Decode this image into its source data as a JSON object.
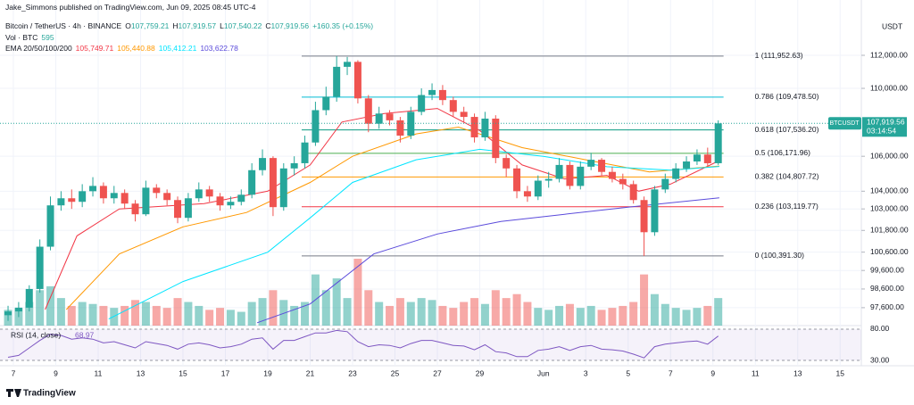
{
  "header": {
    "publisher": "Jake_Simmons published on TradingView.com, Jun 09, 2025 08:45 UTC-4",
    "symbol": "Bitcoin / TetherUS · 4h · BINANCE",
    "ohlc": [
      {
        "key": "O",
        "value": "107,759.21"
      },
      {
        "key": "H",
        "value": "107,919.57"
      },
      {
        "key": "L",
        "value": "107,540.22"
      },
      {
        "key": "C",
        "value": "107,919.56"
      }
    ],
    "change": "+160.35 (+0.15%)",
    "vol_label": "Vol · BTC",
    "vol_value": "595",
    "ema_label": "EMA 20/50/100/200",
    "ema_values": [
      "105,749.71",
      "105,440.88",
      "105,412.21",
      "103,622.78"
    ]
  },
  "chart_data": {
    "type": "candlestick",
    "currency": "USDT",
    "log_scale": true,
    "grid": true,
    "up_color": "#26a69a",
    "down_color": "#ef5350",
    "x": [
      -0.25,
      0.25,
      0.75,
      1.25,
      1.75,
      2.25,
      2.75,
      3.25,
      3.75,
      4.25,
      4.75,
      5.25,
      5.75,
      6.25,
      6.75,
      7.25,
      7.75,
      8.25,
      8.75,
      9.25,
      9.75,
      10.25,
      10.75,
      11.25,
      11.75,
      12.25,
      12.75,
      13.25,
      13.75,
      14.25,
      14.75,
      15.25,
      15.75,
      16.25,
      16.75,
      17.25,
      17.75,
      18.25,
      18.75,
      19.25,
      19.75,
      20.25,
      20.75,
      21.25,
      21.75,
      22.25,
      22.75,
      23.25,
      23.75,
      24.25,
      24.75,
      25.25,
      25.75,
      26.25,
      26.75,
      27.25,
      27.75,
      28.25,
      28.75,
      29.25,
      29.75,
      30.25,
      30.75,
      31.25,
      31.75,
      32.25,
      32.75,
      33.25
    ],
    "open": [
      97200,
      97400,
      97600,
      98600,
      100900,
      103200,
      103600,
      103400,
      104000,
      104300,
      103600,
      103900,
      103300,
      102700,
      104200,
      103900,
      103500,
      102500,
      103600,
      104100,
      103700,
      103200,
      103400,
      103800,
      105200,
      105900,
      103100,
      105300,
      105600,
      106800,
      108700,
      109500,
      111300,
      111600,
      109400,
      107900,
      108500,
      108100,
      107200,
      108600,
      109600,
      109900,
      109300,
      108600,
      108300,
      107100,
      108200,
      105900,
      105300,
      104000,
      103700,
      104600,
      104700,
      105500,
      104300,
      105400,
      105800,
      105100,
      104700,
      104400,
      103500,
      101700,
      104100,
      104700,
      105300,
      105700,
      106100,
      105600
    ],
    "high": [
      97700,
      97900,
      98800,
      101300,
      103700,
      104000,
      104100,
      104400,
      104800,
      104500,
      104300,
      104100,
      103500,
      104600,
      104400,
      104100,
      103700,
      103900,
      104500,
      104300,
      103900,
      103700,
      104100,
      105600,
      106400,
      106000,
      105600,
      106000,
      107200,
      109200,
      110100,
      111952.63,
      111900,
      111700,
      109600,
      108900,
      108700,
      108300,
      108900,
      110000,
      110300,
      110200,
      109500,
      108900,
      108500,
      108600,
      108400,
      106100,
      105500,
      104300,
      104900,
      105100,
      105900,
      105700,
      105700,
      106200,
      105900,
      105400,
      105000,
      104600,
      103700,
      104300,
      105000,
      105600,
      106000,
      106400,
      106500,
      108100
    ],
    "low": [
      96900,
      97100,
      97400,
      98400,
      100700,
      102900,
      103000,
      103100,
      103700,
      103300,
      103300,
      103000,
      102300,
      102600,
      103600,
      103200,
      102200,
      102300,
      103400,
      103400,
      102900,
      103000,
      103200,
      103600,
      104900,
      102600,
      102900,
      104900,
      105300,
      106600,
      108400,
      109200,
      110800,
      109100,
      107400,
      107600,
      107800,
      106800,
      107000,
      108400,
      109300,
      109000,
      108300,
      108000,
      106800,
      106900,
      105600,
      104800,
      103600,
      103400,
      103500,
      104200,
      104500,
      104100,
      104100,
      105200,
      104900,
      104500,
      104100,
      103300,
      100391.3,
      101500,
      103900,
      104500,
      105100,
      105500,
      105400,
      105500
    ],
    "close": [
      97400,
      97600,
      98600,
      100900,
      103200,
      103600,
      103400,
      104000,
      104300,
      103600,
      103900,
      103300,
      102700,
      104200,
      103900,
      103500,
      102500,
      103600,
      104100,
      103700,
      103200,
      103400,
      103800,
      105200,
      105900,
      103100,
      105300,
      105600,
      106800,
      108700,
      109500,
      111300,
      111600,
      109400,
      107900,
      108500,
      108100,
      107200,
      108600,
      109600,
      109900,
      109300,
      108600,
      108300,
      107100,
      108200,
      105900,
      105300,
      104000,
      103700,
      104600,
      104700,
      105500,
      104300,
      105400,
      105800,
      105100,
      104700,
      104400,
      103500,
      101700,
      104100,
      104700,
      105300,
      105700,
      106100,
      105600,
      107919.56
    ],
    "volume": [
      400,
      450,
      600,
      900,
      1000,
      700,
      500,
      600,
      550,
      500,
      450,
      500,
      650,
      600,
      500,
      450,
      700,
      600,
      500,
      400,
      450,
      400,
      350,
      600,
      700,
      900,
      650,
      500,
      600,
      1300,
      900,
      1200,
      700,
      1700,
      900,
      600,
      500,
      700,
      600,
      700,
      650,
      500,
      450,
      600,
      700,
      550,
      900,
      700,
      800,
      600,
      450,
      400,
      500,
      550,
      450,
      500,
      400,
      450,
      500,
      600,
      1300,
      800,
      550,
      450,
      400,
      450,
      500,
      700
    ],
    "xlim": [
      -0.63,
      40
    ],
    "xticks": [
      {
        "value": 0,
        "label": "7"
      },
      {
        "value": 2,
        "label": "9"
      },
      {
        "value": 4,
        "label": "11"
      },
      {
        "value": 6,
        "label": "13"
      },
      {
        "value": 8,
        "label": "15"
      },
      {
        "value": 10,
        "label": "17"
      },
      {
        "value": 12,
        "label": "19"
      },
      {
        "value": 14,
        "label": "21"
      },
      {
        "value": 16,
        "label": "23"
      },
      {
        "value": 18,
        "label": "25"
      },
      {
        "value": 20,
        "label": "27"
      },
      {
        "value": 22,
        "label": "29"
      },
      {
        "value": 25,
        "label": "Jun"
      },
      {
        "value": 27,
        "label": "3"
      },
      {
        "value": 29,
        "label": "5"
      },
      {
        "value": 31,
        "label": "7"
      },
      {
        "value": 33,
        "label": "9"
      },
      {
        "value": 35,
        "label": "11"
      },
      {
        "value": 37,
        "label": "13"
      },
      {
        "value": 39,
        "label": "15"
      }
    ],
    "ylim": [
      96650,
      115430
    ],
    "yticks": [
      {
        "value": 112000,
        "label": "112,000.00"
      },
      {
        "value": 110000,
        "label": "110,000.00"
      },
      {
        "value": 106000,
        "label": "106,000.00"
      },
      {
        "value": 104000,
        "label": "104,000.00"
      },
      {
        "value": 103000,
        "label": "103,000.00"
      },
      {
        "value": 101800,
        "label": "101,800.00"
      },
      {
        "value": 100600,
        "label": "100,600.00"
      },
      {
        "value": 99600,
        "label": "99,600.00"
      },
      {
        "value": 98600,
        "label": "98,600.00"
      },
      {
        "value": 97600,
        "label": "97,600.00"
      }
    ],
    "ema": [
      {
        "color": "#f23645",
        "x": [
          1.5,
          3,
          5,
          9,
          12,
          14,
          15.5,
          17.5,
          20,
          22,
          24,
          26,
          28,
          29.5,
          31,
          33.3
        ],
        "values": [
          97500,
          101500,
          103000,
          103300,
          104000,
          105500,
          108000,
          108500,
          108800,
          107500,
          105500,
          104700,
          104900,
          104000,
          104400,
          105749.71
        ]
      },
      {
        "color": "#ff9800",
        "x": [
          2.5,
          5,
          8,
          11,
          14,
          16,
          19,
          21,
          24,
          27,
          30,
          33.3
        ],
        "values": [
          97500,
          100500,
          102000,
          102800,
          104500,
          106000,
          107300,
          107700,
          106500,
          105800,
          105100,
          105440.88
        ]
      },
      {
        "color": "#00e5ff",
        "x": [
          4.5,
          8,
          12,
          14,
          16,
          19,
          22,
          25,
          28,
          31,
          33.3
        ],
        "values": [
          97000,
          99000,
          100600,
          102500,
          104500,
          105800,
          106400,
          106000,
          105400,
          105200,
          105412.21
        ]
      },
      {
        "color": "#5b4bdb",
        "x": [
          11.5,
          14,
          17,
          20,
          23,
          26,
          29,
          33.3
        ],
        "values": [
          96800,
          97800,
          100500,
          101600,
          102300,
          102700,
          103100,
          103622.78
        ]
      }
    ],
    "fib": [
      {
        "label": "1 (111,952.63)",
        "value": 111952.63,
        "color": "#787b86"
      },
      {
        "label": "0.786 (109,478.50)",
        "value": 109478.5,
        "color": "#00bcd4"
      },
      {
        "label": "0.618 (107,536.20)",
        "value": 107536.2,
        "color": "#089981"
      },
      {
        "label": "0.5 (106,171.96)",
        "value": 106171.96,
        "color": "#4caf50"
      },
      {
        "label": "0.382 (104,807.72)",
        "value": 104807.72,
        "color": "#ff9800"
      },
      {
        "label": "0.236 (103,119.77)",
        "value": 103119.77,
        "color": "#f23645"
      },
      {
        "label": "0 (100,391.30)",
        "value": 100391.3,
        "color": "#787b86"
      }
    ],
    "last_price": {
      "symbol": "BTCUSDT",
      "value": 107919.56,
      "label": "107,919.56",
      "countdown": "03:14:54",
      "color": "#26a69a"
    },
    "rsi": {
      "label": "RSI (14, close)",
      "value_label": "68.97",
      "color": "#7e57c2",
      "ylim": [
        24.3,
        85.7
      ],
      "yticks": [
        {
          "value": 80,
          "label": "80.00"
        },
        {
          "value": 30,
          "label": "30.00"
        }
      ],
      "values": [
        35,
        38,
        50,
        62,
        72,
        70,
        64,
        66,
        64,
        58,
        60,
        55,
        50,
        60,
        57,
        54,
        48,
        56,
        58,
        55,
        50,
        52,
        56,
        64,
        66,
        48,
        62,
        62,
        68,
        74,
        74,
        78,
        76,
        60,
        52,
        55,
        54,
        50,
        57,
        62,
        62,
        58,
        54,
        53,
        47,
        55,
        44,
        42,
        36,
        36,
        46,
        48,
        52,
        46,
        52,
        54,
        48,
        47,
        45,
        40,
        34,
        52,
        56,
        58,
        60,
        61,
        56,
        68.97
      ]
    }
  },
  "footer": {
    "brand": "TradingView"
  }
}
